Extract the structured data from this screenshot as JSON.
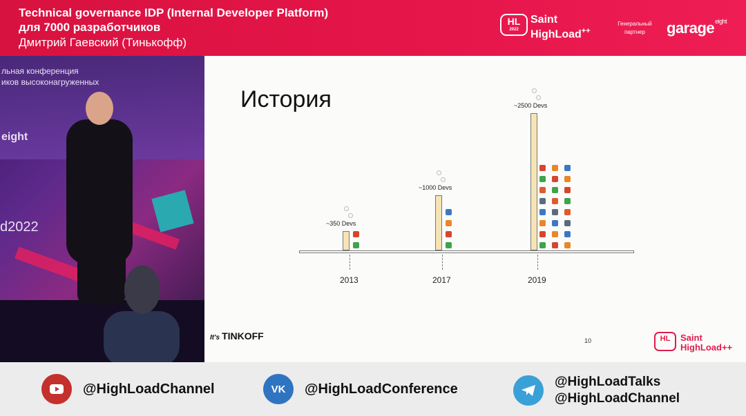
{
  "header": {
    "title_line1": "Technical governance IDP (Internal Developer Platform)",
    "title_line2": "для 7000 разработчиков",
    "speaker": "Дмитрий Гаевский (Тинькофф)",
    "hl_logo": "HL",
    "hl_logo_year": "2022",
    "event_line1": "Saint",
    "event_line2": "HighLoad",
    "event_plus": "++",
    "partner_line1": "Генеральный",
    "partner_line2": "партнер",
    "partner_logo": "garage",
    "partner_logo_sup": "eight"
  },
  "stage": {
    "banner_line1": "льная конференция",
    "banner_line2": "иков высоконагруженных",
    "sponsor": "eight",
    "year_text": "d2022"
  },
  "slide": {
    "title": "История",
    "page_number": "10",
    "brand_prefix": "It's",
    "brand": "TINKOFF",
    "logo_hl": "HL",
    "logo_line1": "Saint",
    "logo_line2": "HighLoad",
    "logo_plus": "++"
  },
  "chart_data": {
    "type": "bar",
    "categories": [
      "2013",
      "2017",
      "2019"
    ],
    "values": [
      350,
      1000,
      2500
    ],
    "data_labels": [
      "~350 Devs",
      "~1000 Devs",
      "~2500 Devs"
    ],
    "title": "История",
    "xlabel": "",
    "ylabel": "",
    "ylim": [
      0,
      2700
    ],
    "grid": false
  },
  "footer": {
    "youtube": "@HighLoadChannel",
    "vk": "@HighLoadConference",
    "telegram_line1": "@HighLoadTalks",
    "telegram_line2": "@HighLoadChannel",
    "youtube_icon": "youtube-icon",
    "vk_icon": "vk-icon",
    "telegram_icon": "telegram-icon",
    "youtube_color": "#c4302b",
    "vk_color": "#2f74c0",
    "telegram_color": "#3aa0d8"
  }
}
